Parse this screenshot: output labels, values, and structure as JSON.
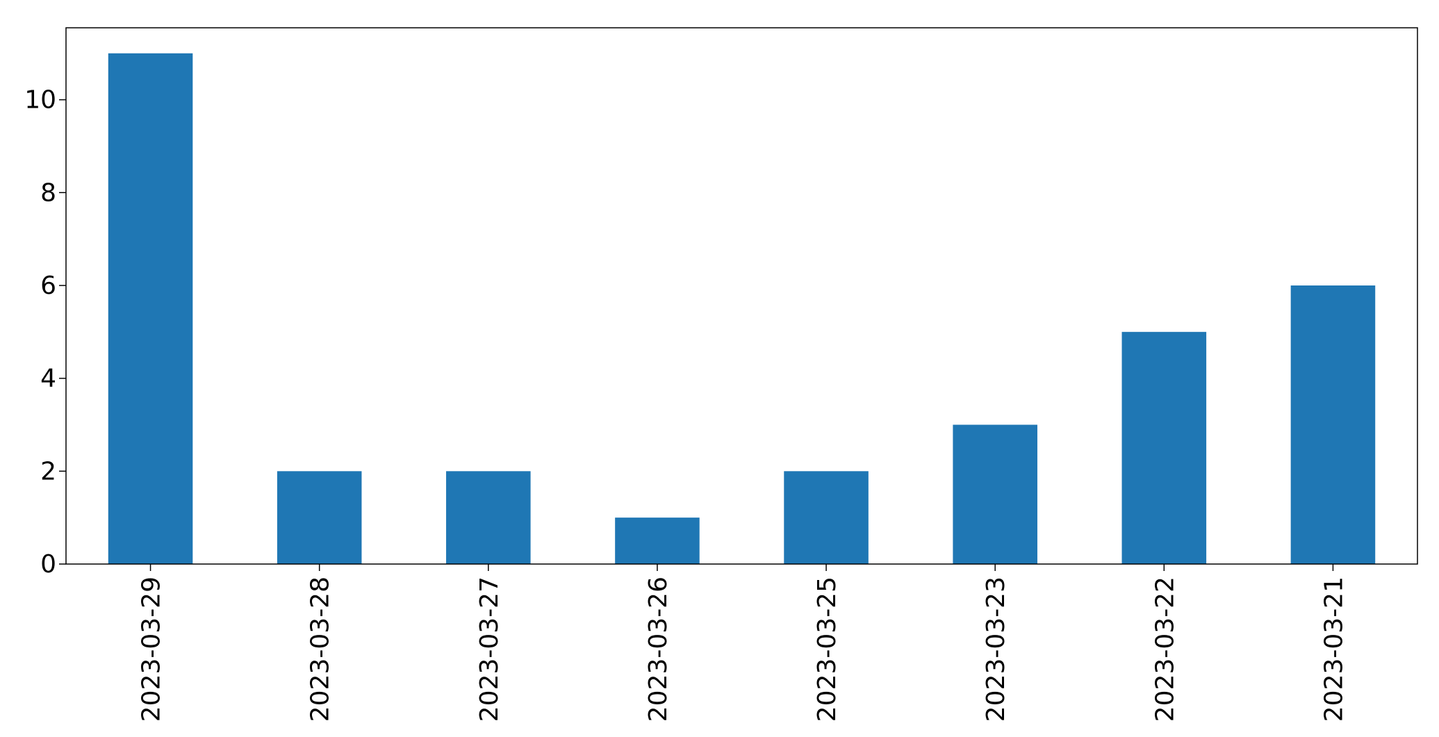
{
  "chart_data": {
    "type": "bar",
    "title": "",
    "xlabel": "",
    "ylabel": "",
    "categories": [
      "2023-03-29",
      "2023-03-28",
      "2023-03-27",
      "2023-03-26",
      "2023-03-25",
      "2023-03-23",
      "2023-03-22",
      "2023-03-21"
    ],
    "values": [
      11,
      2,
      2,
      1,
      2,
      3,
      5,
      6
    ],
    "ylim": [
      0,
      11.55
    ],
    "yticks": [
      0,
      2,
      4,
      6,
      8,
      10
    ],
    "grid": false,
    "legend": "none",
    "bar_color": "#1f77b4"
  }
}
